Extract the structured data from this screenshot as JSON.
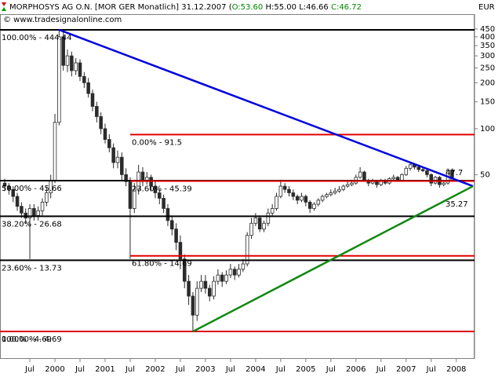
{
  "chart_data": {
    "type": "candlestick",
    "title": "MORPHOSYS AG O.N. [MOR GER  Monatlich] 31.12.2007 (",
    "ohlc_labels": [
      "O:53.60",
      "H:55.00",
      "L:46.66",
      "C:46.72"
    ],
    "subtitle": "© www.tradesignalonline.com",
    "currency": "EUR",
    "log_scale": true,
    "ylim": [
      3.1,
      563
    ],
    "yticks": [
      450,
      400,
      350,
      300,
      250,
      200,
      150,
      100,
      50
    ],
    "xticks": [
      {
        "value": "1999-07",
        "label": "Jul"
      },
      {
        "value": "2000-01",
        "label": "2000"
      },
      {
        "value": "2000-07",
        "label": "Jul"
      },
      {
        "value": "2001-01",
        "label": "2001"
      },
      {
        "value": "2001-07",
        "label": "Jul"
      },
      {
        "value": "2002-01",
        "label": "2002"
      },
      {
        "value": "2002-07",
        "label": "Jul"
      },
      {
        "value": "2003-01",
        "label": "2003"
      },
      {
        "value": "2003-07",
        "label": "Jul"
      },
      {
        "value": "2004-01",
        "label": "2004"
      },
      {
        "value": "2004-07",
        "label": "Jul"
      },
      {
        "value": "2005-01",
        "label": "2005"
      },
      {
        "value": "2005-07",
        "label": "Jul"
      },
      {
        "value": "2006-01",
        "label": "2006"
      },
      {
        "value": "2006-07",
        "label": "Jul"
      },
      {
        "value": "2007-01",
        "label": "2007"
      },
      {
        "value": "2007-07",
        "label": "Jul"
      },
      {
        "value": "2008-01",
        "label": "2008"
      }
    ],
    "up_color": "#ffffff",
    "down_color": "#2b2b2b",
    "x": [
      "1999-01",
      "1999-02",
      "1999-03",
      "1999-04",
      "1999-05",
      "1999-06",
      "1999-07",
      "1999-08",
      "1999-09",
      "1999-10",
      "1999-11",
      "1999-12",
      "2000-01",
      "2000-02",
      "2000-03",
      "2000-04",
      "2000-05",
      "2000-06",
      "2000-07",
      "2000-08",
      "2000-09",
      "2000-10",
      "2000-11",
      "2000-12",
      "2001-01",
      "2001-02",
      "2001-03",
      "2001-04",
      "2001-05",
      "2001-06",
      "2001-07",
      "2001-08",
      "2001-09",
      "2001-10",
      "2001-11",
      "2001-12",
      "2002-01",
      "2002-02",
      "2002-03",
      "2002-04",
      "2002-05",
      "2002-06",
      "2002-07",
      "2002-08",
      "2002-09",
      "2002-10",
      "2002-11",
      "2002-12",
      "2003-01",
      "2003-02",
      "2003-03",
      "2003-04",
      "2003-05",
      "2003-06",
      "2003-07",
      "2003-08",
      "2003-09",
      "2003-10",
      "2003-11",
      "2003-12",
      "2004-01",
      "2004-02",
      "2004-03",
      "2004-04",
      "2004-05",
      "2004-06",
      "2004-07",
      "2004-08",
      "2004-09",
      "2004-10",
      "2004-11",
      "2004-12",
      "2005-01",
      "2005-02",
      "2005-03",
      "2005-04",
      "2005-05",
      "2005-06",
      "2005-07",
      "2005-08",
      "2005-09",
      "2005-10",
      "2005-11",
      "2005-12",
      "2006-01",
      "2006-02",
      "2006-03",
      "2006-04",
      "2006-05",
      "2006-06",
      "2006-07",
      "2006-08",
      "2006-09",
      "2006-10",
      "2006-11",
      "2006-12",
      "2007-01",
      "2007-02",
      "2007-03",
      "2007-04",
      "2007-05",
      "2007-06",
      "2007-07",
      "2007-08",
      "2007-09",
      "2007-10",
      "2007-11",
      "2007-12"
    ],
    "ohlc": [
      [
        44,
        47,
        39,
        42
      ],
      [
        42,
        44,
        37,
        40
      ],
      [
        40,
        42,
        33,
        36
      ],
      [
        36,
        38,
        29,
        31
      ],
      [
        31,
        33,
        26,
        28
      ],
      [
        28,
        30,
        24,
        26
      ],
      [
        26,
        32,
        14,
        30
      ],
      [
        30,
        32,
        25,
        27
      ],
      [
        27,
        31,
        25,
        29
      ],
      [
        29,
        35,
        27,
        33
      ],
      [
        33,
        41,
        31,
        38
      ],
      [
        38,
        50,
        35,
        46
      ],
      [
        46,
        125,
        44,
        110
      ],
      [
        110,
        444.44,
        105,
        400
      ],
      [
        400,
        430,
        240,
        260
      ],
      [
        260,
        330,
        235,
        300
      ],
      [
        300,
        320,
        220,
        240
      ],
      [
        240,
        290,
        225,
        270
      ],
      [
        270,
        285,
        205,
        220
      ],
      [
        220,
        235,
        185,
        200
      ],
      [
        200,
        215,
        160,
        170
      ],
      [
        170,
        180,
        130,
        140
      ],
      [
        140,
        150,
        110,
        120
      ],
      [
        120,
        128,
        92,
        100
      ],
      [
        100,
        108,
        80,
        85
      ],
      [
        85,
        92,
        70,
        75
      ],
      [
        75,
        80,
        55,
        60
      ],
      [
        60,
        72,
        55,
        65
      ],
      [
        65,
        70,
        46,
        50
      ],
      [
        50,
        55,
        42,
        45
      ],
      [
        45,
        48,
        14,
        30
      ],
      [
        30,
        44,
        28,
        40
      ],
      [
        40,
        58,
        37,
        52
      ],
      [
        52,
        56,
        42,
        45
      ],
      [
        45,
        52,
        43,
        48
      ],
      [
        48,
        50,
        39,
        42
      ],
      [
        42,
        45,
        35,
        38
      ],
      [
        38,
        40,
        32,
        35
      ],
      [
        35,
        37,
        28,
        30
      ],
      [
        30,
        32,
        23,
        25
      ],
      [
        25,
        27,
        20,
        22
      ],
      [
        22,
        24,
        16,
        18
      ],
      [
        18,
        20,
        12,
        14
      ],
      [
        14,
        15,
        9,
        10
      ],
      [
        10,
        11,
        7,
        8
      ],
      [
        8,
        8.5,
        4.69,
        6
      ],
      [
        6,
        10,
        5.5,
        9
      ],
      [
        9,
        11,
        8.5,
        10
      ],
      [
        10,
        11,
        8.3,
        9
      ],
      [
        9,
        9.5,
        7.4,
        8
      ],
      [
        8,
        10.8,
        7.6,
        10
      ],
      [
        10,
        12,
        9.5,
        11
      ],
      [
        11,
        11.5,
        9.2,
        10
      ],
      [
        10,
        11.8,
        9.6,
        11
      ],
      [
        11,
        13,
        10.5,
        12
      ],
      [
        12,
        12.5,
        10.2,
        11
      ],
      [
        11,
        13,
        10.6,
        12
      ],
      [
        12,
        14,
        11.5,
        13
      ],
      [
        13,
        21,
        12.5,
        20
      ],
      [
        20,
        26,
        19,
        24
      ],
      [
        24,
        28,
        23,
        26
      ],
      [
        26,
        27,
        21,
        22
      ],
      [
        22,
        25,
        21,
        24
      ],
      [
        24,
        30,
        23,
        28
      ],
      [
        28,
        32,
        27,
        30
      ],
      [
        30,
        38,
        29,
        36
      ],
      [
        36,
        45,
        35,
        42
      ],
      [
        42,
        44,
        38,
        40
      ],
      [
        40,
        42,
        36,
        38
      ],
      [
        38,
        40,
        34,
        36
      ],
      [
        36,
        37,
        32,
        34
      ],
      [
        34,
        38,
        33,
        36
      ],
      [
        36,
        37,
        31,
        33
      ],
      [
        33,
        34,
        28,
        30
      ],
      [
        30,
        33,
        29,
        32
      ],
      [
        32,
        35,
        31,
        34
      ],
      [
        34,
        37,
        33,
        36
      ],
      [
        36,
        38,
        35,
        37
      ],
      [
        37,
        40,
        36,
        38
      ],
      [
        38,
        41,
        37,
        39
      ],
      [
        39,
        42,
        38,
        40
      ],
      [
        40,
        43,
        39,
        42
      ],
      [
        42,
        45,
        41,
        43
      ],
      [
        43,
        46,
        42,
        44
      ],
      [
        44,
        50,
        43,
        48
      ],
      [
        48,
        56,
        47,
        52
      ],
      [
        52,
        53,
        45,
        46
      ],
      [
        46,
        47,
        42,
        44
      ],
      [
        44,
        47,
        43,
        45
      ],
      [
        45,
        46,
        41,
        43
      ],
      [
        43,
        47,
        42,
        46
      ],
      [
        46,
        47,
        43,
        44
      ],
      [
        44,
        48,
        43,
        47
      ],
      [
        47,
        50,
        46,
        48
      ],
      [
        48,
        49,
        45,
        46
      ],
      [
        46,
        51,
        45,
        50
      ],
      [
        50,
        57,
        49,
        55
      ],
      [
        55,
        60,
        53,
        58
      ],
      [
        58,
        59,
        54,
        56
      ],
      [
        56,
        57,
        52,
        54
      ],
      [
        54,
        56,
        52,
        53
      ],
      [
        53,
        54,
        48,
        50
      ],
      [
        50,
        51,
        42,
        44
      ],
      [
        44,
        49,
        43,
        48
      ],
      [
        48,
        49,
        41,
        43
      ],
      [
        43,
        46,
        42,
        44
      ],
      [
        44,
        55,
        43,
        53.6
      ],
      [
        53.6,
        55,
        46.66,
        46.72
      ]
    ],
    "levels": [
      {
        "label": "100.00% - 444.44",
        "value": 444.44,
        "color": "#000000"
      },
      {
        "label": "50.00% - 45.66",
        "value": 45.66,
        "color": "#000000"
      },
      {
        "label": "38.20% - 26.68",
        "value": 26.68,
        "color": "#000000"
      },
      {
        "label": "23.60% - 13.73",
        "value": 13.73,
        "color": "#000000"
      },
      {
        "label": "0.00% - 4.69",
        "value": 4.69,
        "color": "#000000"
      },
      {
        "label": "0.00% - 91.5",
        "value": 91.5,
        "color": "#e00000",
        "from": "2001-07"
      },
      {
        "label": "23.60% - 45.39",
        "value": 45.39,
        "color": "#e00000",
        "from": "2001-07"
      },
      {
        "label": "61.80% - 14.69",
        "value": 14.69,
        "color": "#e00000",
        "from": "2001-07"
      },
      {
        "label": "100.00% - 4.69",
        "value": 4.69,
        "color": "#e00000"
      }
    ],
    "trendlines": [
      {
        "color": "#0000dd",
        "x": [
          "2000-02",
          "2008-05"
        ],
        "values": [
          444.44,
          42
        ],
        "label": "47.7"
      },
      {
        "color": "#118811",
        "x": [
          "2002-10",
          "2008-05"
        ],
        "values": [
          4.69,
          42
        ],
        "label": "35.27"
      }
    ]
  }
}
